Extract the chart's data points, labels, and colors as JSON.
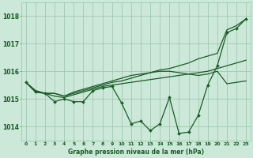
{
  "background_color": "#cce8d8",
  "grid_color": "#99c4aa",
  "line_color": "#1a5c28",
  "text_color": "#1a5c28",
  "xlabel": "Graphe pression niveau de la mer (hPa)",
  "xlim": [
    -0.5,
    23.5
  ],
  "ylim": [
    1013.5,
    1018.5
  ],
  "yticks": [
    1014,
    1015,
    1016,
    1017,
    1018
  ],
  "xticks": [
    0,
    1,
    2,
    3,
    4,
    5,
    6,
    7,
    8,
    9,
    10,
    11,
    12,
    13,
    14,
    15,
    16,
    17,
    18,
    19,
    20,
    21,
    22,
    23
  ],
  "series_no_marker": [
    [
      1015.6,
      1015.3,
      1015.2,
      1015.2,
      1015.1,
      1015.2,
      1015.3,
      1015.4,
      1015.5,
      1015.6,
      1015.65,
      1015.75,
      1015.85,
      1015.95,
      1016.05,
      1016.1,
      1016.2,
      1016.3,
      1016.45,
      1016.55,
      1016.65,
      1017.5,
      1017.65,
      1017.9
    ],
    [
      1015.6,
      1015.3,
      1015.2,
      1015.2,
      1015.1,
      1015.25,
      1015.35,
      1015.45,
      1015.55,
      1015.65,
      1015.75,
      1015.85,
      1015.9,
      1015.95,
      1016.0,
      1016.0,
      1015.95,
      1015.9,
      1015.85,
      1015.9,
      1016.0,
      1015.55,
      1015.6,
      1015.65
    ],
    [
      1015.6,
      1015.25,
      1015.2,
      1015.1,
      1015.05,
      1015.15,
      1015.25,
      1015.35,
      1015.45,
      1015.5,
      1015.55,
      1015.6,
      1015.65,
      1015.7,
      1015.75,
      1015.8,
      1015.85,
      1015.9,
      1015.95,
      1016.0,
      1016.1,
      1016.2,
      1016.3,
      1016.4
    ]
  ],
  "series_marker": [
    [
      1015.6,
      1015.25,
      1015.2,
      1014.9,
      1015.0,
      1014.9,
      1014.9,
      1015.3,
      1015.4,
      1015.45,
      1014.85,
      1014.1,
      1014.2,
      1013.85,
      1014.1,
      1015.05,
      1013.75,
      1013.8,
      1014.4,
      1015.5,
      1016.2,
      1017.4,
      1017.55,
      1017.9
    ]
  ]
}
